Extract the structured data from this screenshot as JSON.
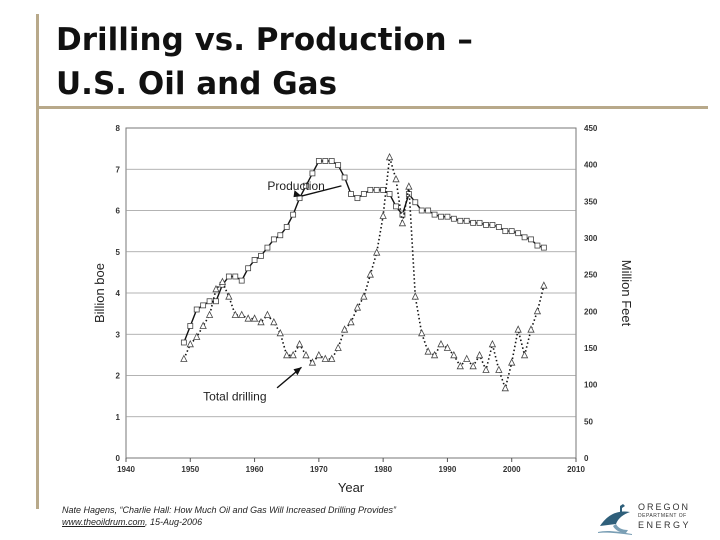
{
  "slide": {
    "title_line1": "Drilling vs. Production –",
    "title_line2": "U.S. Oil and Gas",
    "citation_text": "Nate Hagens, “Charlie Hall: How Much Oil and Gas Will Increased Drilling Provides”",
    "citation_link": "www.theoildrum.com",
    "citation_date": ", 15-Aug-2006",
    "accent_color": "#b8a98a"
  },
  "logo": {
    "line1": "OREGON",
    "line2": "DEPARTMENT OF",
    "line3": "ENERGY",
    "icon": "heron-icon"
  },
  "chart_data": {
    "type": "line",
    "xlabel": "Year",
    "ylabel_left": "Billion boe",
    "ylabel_right": "Million Feet",
    "xlim": [
      1940,
      2010
    ],
    "ylim_left": [
      0,
      8
    ],
    "ylim_right": [
      0,
      450
    ],
    "x_ticks": [
      "1940",
      "1950",
      "1960",
      "1970",
      "1980",
      "1990",
      "2000",
      "2010"
    ],
    "y_ticks_left": [
      "0",
      "1",
      "2",
      "3",
      "4",
      "5",
      "6",
      "7",
      "8"
    ],
    "y_ticks_right": [
      "0",
      "50",
      "100",
      "150",
      "200",
      "250",
      "300",
      "350",
      "400",
      "450"
    ],
    "grid": "horizontal",
    "annotations": [
      {
        "text": "Production",
        "x": 1962,
        "y": 6.5
      },
      {
        "text": "Total drilling",
        "x": 1952,
        "y": 1.4
      }
    ],
    "series": [
      {
        "name": "Production",
        "axis": "left",
        "marker": "square",
        "style": "solid",
        "x": [
          1949,
          1950,
          1951,
          1952,
          1953,
          1954,
          1955,
          1956,
          1957,
          1958,
          1959,
          1960,
          1961,
          1962,
          1963,
          1964,
          1965,
          1966,
          1967,
          1968,
          1969,
          1970,
          1971,
          1972,
          1973,
          1974,
          1975,
          1976,
          1977,
          1978,
          1979,
          1980,
          1981,
          1982,
          1983,
          1984,
          1985,
          1986,
          1987,
          1988,
          1989,
          1990,
          1991,
          1992,
          1993,
          1994,
          1995,
          1996,
          1997,
          1998,
          1999,
          2000,
          2001,
          2002,
          2003,
          2004,
          2005
        ],
        "values": [
          2.8,
          3.2,
          3.6,
          3.7,
          3.8,
          3.8,
          4.2,
          4.4,
          4.4,
          4.3,
          4.6,
          4.8,
          4.9,
          5.1,
          5.3,
          5.4,
          5.6,
          5.9,
          6.3,
          6.6,
          6.9,
          7.2,
          7.2,
          7.2,
          7.1,
          6.8,
          6.4,
          6.3,
          6.4,
          6.5,
          6.5,
          6.5,
          6.4,
          6.1,
          5.9,
          6.4,
          6.2,
          6.0,
          6.0,
          5.9,
          5.85,
          5.85,
          5.8,
          5.75,
          5.75,
          5.7,
          5.7,
          5.65,
          5.65,
          5.6,
          5.5,
          5.5,
          5.45,
          5.35,
          5.3,
          5.15,
          5.1
        ]
      },
      {
        "name": "Total drilling",
        "axis": "right",
        "marker": "triangle",
        "style": "dotted",
        "x": [
          1949,
          1950,
          1951,
          1952,
          1953,
          1954,
          1955,
          1956,
          1957,
          1958,
          1959,
          1960,
          1961,
          1962,
          1963,
          1964,
          1965,
          1966,
          1967,
          1968,
          1969,
          1970,
          1971,
          1972,
          1973,
          1974,
          1975,
          1976,
          1977,
          1978,
          1979,
          1980,
          1981,
          1982,
          1983,
          1984,
          1985,
          1986,
          1987,
          1988,
          1989,
          1990,
          1991,
          1992,
          1993,
          1994,
          1995,
          1996,
          1997,
          1998,
          1999,
          2000,
          2001,
          2002,
          2003,
          2004,
          2005
        ],
        "values": [
          135,
          155,
          165,
          180,
          195,
          230,
          240,
          220,
          195,
          195,
          190,
          190,
          185,
          195,
          185,
          170,
          140,
          140,
          155,
          140,
          130,
          140,
          135,
          135,
          150,
          175,
          185,
          205,
          220,
          250,
          280,
          330,
          410,
          380,
          320,
          370,
          220,
          170,
          145,
          140,
          155,
          150,
          140,
          125,
          135,
          125,
          140,
          120,
          155,
          120,
          95,
          130,
          175,
          140,
          175,
          200,
          235
        ]
      }
    ]
  }
}
